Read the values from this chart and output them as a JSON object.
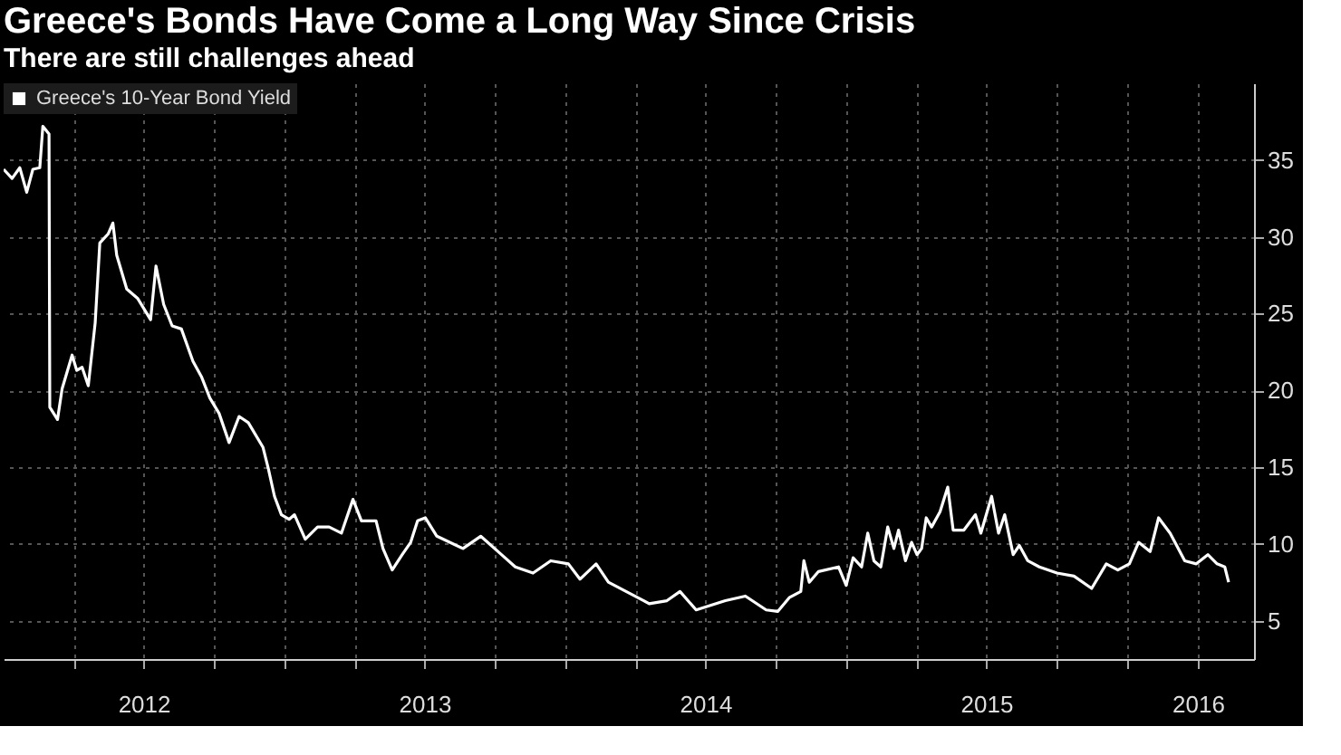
{
  "chart_data": {
    "type": "line",
    "title": "Greece's Bonds Have Come a Long Way Since Crisis",
    "subtitle": "There are still challenges ahead",
    "x": [
      "2012-01-01",
      "2012-01-12",
      "2012-01-22",
      "2012-01-31",
      "2012-02-08",
      "2012-02-17",
      "2012-02-21",
      "2012-02-29",
      "2012-03-01",
      "2012-03-11",
      "2012-03-17",
      "2012-03-30",
      "2012-04-05",
      "2012-04-12",
      "2012-04-20",
      "2012-04-29",
      "2012-05-05",
      "2012-05-16",
      "2012-05-22",
      "2012-05-27",
      "2012-06-09",
      "2012-06-23",
      "2012-07-10",
      "2012-07-17",
      "2012-07-27",
      "2012-08-07",
      "2012-08-19",
      "2012-09-03",
      "2012-09-14",
      "2012-09-25",
      "2012-10-07",
      "2012-10-20",
      "2012-11-02",
      "2012-11-14",
      "2012-12-03",
      "2012-12-10",
      "2012-12-18",
      "2012-12-27",
      "2013-01-06",
      "2013-01-13",
      "2013-01-27",
      "2013-02-12",
      "2013-02-27",
      "2013-03-15",
      "2013-03-30",
      "2013-04-10",
      "2013-04-29",
      "2013-05-08",
      "2013-05-20",
      "2013-06-02",
      "2013-06-13",
      "2013-06-22",
      "2013-07-02",
      "2013-07-17",
      "2013-08-20",
      "2013-09-12",
      "2013-10-09",
      "2013-10-27",
      "2013-11-19",
      "2013-12-12",
      "2014-01-04",
      "2014-01-19",
      "2014-02-09",
      "2014-02-25",
      "2014-03-20",
      "2014-04-12",
      "2014-04-19",
      "2014-05-12",
      "2014-05-29",
      "2014-06-19",
      "2014-07-27",
      "2014-08-22",
      "2014-09-18",
      "2014-10-03",
      "2014-10-18",
      "2014-11-02",
      "2014-11-06",
      "2014-11-13",
      "2014-11-25",
      "2014-12-21",
      "2014-12-31",
      "2015-01-09",
      "2015-01-20",
      "2015-01-28",
      "2015-02-05",
      "2015-02-14",
      "2015-02-23",
      "2015-03-03",
      "2015-03-09",
      "2015-03-18",
      "2015-03-26",
      "2015-04-02",
      "2015-04-08",
      "2015-04-14",
      "2015-04-21",
      "2015-05-02",
      "2015-05-12",
      "2015-05-19",
      "2015-06-02",
      "2015-06-17",
      "2015-06-24",
      "2015-07-08",
      "2015-07-17",
      "2015-07-25",
      "2015-08-05",
      "2015-08-13",
      "2015-08-24",
      "2015-09-08",
      "2015-10-01",
      "2015-10-23",
      "2015-11-15",
      "2015-12-04",
      "2015-12-19",
      "2016-01-03",
      "2016-01-15",
      "2016-01-30",
      "2016-02-10",
      "2016-02-25",
      "2016-03-15",
      "2016-03-30",
      "2016-04-14",
      "2016-04-26",
      "2016-05-06",
      "2016-05-11"
    ],
    "series": [
      {
        "name": "Greece's 10-Year Bond Yield",
        "color": "#ffffff",
        "values": [
          34.4,
          33.8,
          34.5,
          32.9,
          34.4,
          34.5,
          37.2,
          36.7,
          18.9,
          18.1,
          20.1,
          22.3,
          21.3,
          21.5,
          20.3,
          24.4,
          29.6,
          30.2,
          30.9,
          28.8,
          26.6,
          26.0,
          24.6,
          28.1,
          25.6,
          24.2,
          24.0,
          21.9,
          20.9,
          19.5,
          18.5,
          16.6,
          18.3,
          17.9,
          16.3,
          14.9,
          13.1,
          11.9,
          11.6,
          11.9,
          10.3,
          11.1,
          11.1,
          10.7,
          12.9,
          11.5,
          11.5,
          9.7,
          8.3,
          9.3,
          10.1,
          11.5,
          11.7,
          10.5,
          9.7,
          10.5,
          9.3,
          8.5,
          8.1,
          8.9,
          8.7,
          7.7,
          8.7,
          7.5,
          6.9,
          6.3,
          6.1,
          6.3,
          6.9,
          5.7,
          6.3,
          6.6,
          5.7,
          5.6,
          6.5,
          6.9,
          8.9,
          7.5,
          8.2,
          8.5,
          7.3,
          9.1,
          8.5,
          10.7,
          8.9,
          8.5,
          11.1,
          9.7,
          10.9,
          8.9,
          10.1,
          9.3,
          9.7,
          11.7,
          11.1,
          12.1,
          13.7,
          10.9,
          10.9,
          11.9,
          10.7,
          13.1,
          10.7,
          11.9,
          9.3,
          9.9,
          8.9,
          8.5,
          8.1,
          7.9,
          7.1,
          8.7,
          8.3,
          8.7,
          10.1,
          9.5,
          11.7,
          10.7,
          8.9,
          8.7,
          9.3,
          8.7,
          8.5,
          7.5
        ]
      }
    ],
    "xlim": [
      "2012-01-01",
      "2016-06-13"
    ],
    "xticks": [
      {
        "value": "2012-04-01",
        "label": null
      },
      {
        "value": "2012-07-01",
        "label": "2012"
      },
      {
        "value": "2012-10-01",
        "label": null
      },
      {
        "value": "2013-01-01",
        "label": null
      },
      {
        "value": "2013-04-01",
        "label": null
      },
      {
        "value": "2013-07-01",
        "label": "2013"
      },
      {
        "value": "2013-10-01",
        "label": null
      },
      {
        "value": "2014-01-01",
        "label": null
      },
      {
        "value": "2014-04-01",
        "label": null
      },
      {
        "value": "2014-07-01",
        "label": "2014"
      },
      {
        "value": "2014-10-01",
        "label": null
      },
      {
        "value": "2015-01-01",
        "label": null
      },
      {
        "value": "2015-04-01",
        "label": null
      },
      {
        "value": "2015-07-01",
        "label": "2015"
      },
      {
        "value": "2015-10-01",
        "label": null
      },
      {
        "value": "2016-01-01",
        "label": null
      },
      {
        "value": "2016-04-01",
        "label": "2016"
      }
    ],
    "ylim": [
      2.5,
      40
    ],
    "yticks": [
      5,
      10,
      15,
      20,
      25,
      30,
      35
    ],
    "grid": true,
    "legend": "top left",
    "line_style": "solid",
    "marker": "none"
  }
}
